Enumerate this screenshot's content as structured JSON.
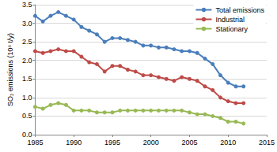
{
  "chart_data": {
    "type": "line",
    "y_label": "SO₂ emissions (10⁶ t/y)",
    "x": [
      1985,
      1986,
      1987,
      1988,
      1989,
      1990,
      1991,
      1992,
      1993,
      1994,
      1995,
      1996,
      1997,
      1998,
      1999,
      2000,
      2001,
      2002,
      2003,
      2004,
      2005,
      2006,
      2007,
      2008,
      2009,
      2010,
      2011,
      2012
    ],
    "series": [
      {
        "name": "Total emissions",
        "color": "#4a7ebb",
        "marker": "circle",
        "line_style": "solid",
        "values": [
          3.2,
          3.05,
          3.2,
          3.3,
          3.2,
          3.1,
          2.9,
          2.8,
          2.7,
          2.5,
          2.6,
          2.6,
          2.55,
          2.5,
          2.4,
          2.4,
          2.35,
          2.35,
          2.3,
          2.25,
          2.25,
          2.2,
          2.05,
          1.9,
          1.6,
          1.4,
          1.3,
          1.3
        ]
      },
      {
        "name": "Industrial",
        "color": "#be4b48",
        "marker": "circle",
        "line_style": "solid",
        "values": [
          2.25,
          2.2,
          2.25,
          2.3,
          2.25,
          2.25,
          2.1,
          1.95,
          1.9,
          1.7,
          1.85,
          1.85,
          1.75,
          1.7,
          1.6,
          1.6,
          1.55,
          1.5,
          1.45,
          1.55,
          1.5,
          1.45,
          1.3,
          1.2,
          1.0,
          0.9,
          0.85,
          0.85
        ]
      },
      {
        "name": "Stationary",
        "color": "#98b954",
        "marker": "circle",
        "line_style": "solid",
        "values": [
          0.75,
          0.7,
          0.8,
          0.85,
          0.8,
          0.65,
          0.65,
          0.65,
          0.6,
          0.6,
          0.6,
          0.65,
          0.65,
          0.65,
          0.65,
          0.65,
          0.65,
          0.65,
          0.65,
          0.65,
          0.6,
          0.55,
          0.55,
          0.5,
          0.45,
          0.35,
          0.35,
          0.3
        ]
      }
    ],
    "xlim": [
      1985,
      2015
    ],
    "xticks": [
      1985,
      1990,
      1995,
      2000,
      2005,
      2010,
      2015
    ],
    "ylim": [
      0,
      3.5
    ],
    "yticks": [
      {
        "value": 0,
        "label": "0.0"
      },
      {
        "value": 0.5,
        "label": "0.5"
      },
      {
        "value": 1,
        "label": "1.0"
      },
      {
        "value": 1.5,
        "label": "1.5"
      },
      {
        "value": 2,
        "label": "2.0"
      },
      {
        "value": 2.5,
        "label": "2.5"
      },
      {
        "value": 3,
        "label": "3.0"
      },
      {
        "value": 3.5,
        "label": "3.5"
      }
    ],
    "grid": true,
    "legend": "upper right"
  }
}
